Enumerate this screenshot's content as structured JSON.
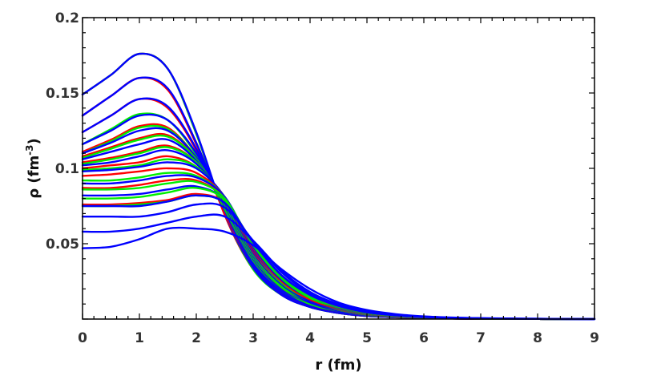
{
  "chart_data": {
    "type": "line",
    "title": "",
    "xlabel": "r (fm)",
    "ylabel": {
      "base": "ρ (fm",
      "sup": "-3",
      "tail": ")"
    },
    "xlim": [
      0,
      9
    ],
    "ylim": [
      0,
      0.2
    ],
    "x_ticks": [
      "0",
      "1",
      "2",
      "3",
      "4",
      "5",
      "6",
      "7",
      "8",
      "9"
    ],
    "y_ticks": [
      {
        "value": 0.05,
        "label": "0.05"
      },
      {
        "value": 0.1,
        "label": "0.1"
      },
      {
        "value": 0.15,
        "label": "0.15"
      },
      {
        "value": 0.2,
        "label": "0.2"
      }
    ],
    "grid": false,
    "legend": "none",
    "x": [
      0,
      0.5,
      1,
      1.5,
      2,
      2.5,
      3,
      3.5,
      4,
      4.5,
      5,
      5.5,
      6,
      6.5,
      7,
      8,
      9
    ],
    "series_colors": {
      "red": "#ff0000",
      "green": "#00ee00",
      "blue": "#0000ff"
    },
    "series": [
      {
        "color": "red",
        "values": [
          0.149,
          0.162,
          0.176,
          0.166,
          0.123,
          0.069,
          0.033,
          0.016,
          0.008,
          0.004,
          0.002,
          0.0012,
          0.0007,
          0.0004,
          0.0002,
          0.0001,
          0.0
        ]
      },
      {
        "color": "green",
        "values": [
          0.149,
          0.162,
          0.176,
          0.166,
          0.123,
          0.07,
          0.033,
          0.016,
          0.008,
          0.004,
          0.002,
          0.0012,
          0.0007,
          0.0004,
          0.0002,
          0.0001,
          0.0
        ]
      },
      {
        "color": "blue",
        "values": [
          0.149,
          0.162,
          0.176,
          0.166,
          0.124,
          0.07,
          0.034,
          0.016,
          0.008,
          0.004,
          0.002,
          0.0012,
          0.0007,
          0.0004,
          0.0002,
          0.0001,
          0.0
        ]
      },
      {
        "color": "red",
        "values": [
          0.135,
          0.148,
          0.16,
          0.152,
          0.116,
          0.07,
          0.035,
          0.017,
          0.009,
          0.0045,
          0.0023,
          0.0013,
          0.0008,
          0.0004,
          0.0002,
          0.0001,
          0.0
        ]
      },
      {
        "color": "blue",
        "values": [
          0.135,
          0.148,
          0.16,
          0.153,
          0.117,
          0.071,
          0.035,
          0.017,
          0.009,
          0.0045,
          0.0023,
          0.0013,
          0.0008,
          0.0004,
          0.0002,
          0.0001,
          0.0
        ]
      },
      {
        "color": "red",
        "values": [
          0.124,
          0.135,
          0.146,
          0.14,
          0.112,
          0.071,
          0.036,
          0.018,
          0.009,
          0.005,
          0.0025,
          0.0014,
          0.0008,
          0.0004,
          0.0002,
          0.0001,
          0.0
        ]
      },
      {
        "color": "blue",
        "values": [
          0.124,
          0.135,
          0.146,
          0.141,
          0.113,
          0.072,
          0.036,
          0.018,
          0.009,
          0.005,
          0.0025,
          0.0014,
          0.0008,
          0.0004,
          0.0002,
          0.0001,
          0.0
        ]
      },
      {
        "color": "green",
        "values": [
          0.116,
          0.126,
          0.136,
          0.132,
          0.109,
          0.073,
          0.038,
          0.019,
          0.01,
          0.005,
          0.0027,
          0.0015,
          0.0009,
          0.0005,
          0.0003,
          0.0001,
          0.0
        ]
      },
      {
        "color": "blue",
        "values": [
          0.116,
          0.125,
          0.135,
          0.132,
          0.11,
          0.074,
          0.038,
          0.019,
          0.01,
          0.005,
          0.0027,
          0.0015,
          0.0009,
          0.0005,
          0.0003,
          0.0001,
          0.0
        ]
      },
      {
        "color": "red",
        "values": [
          0.111,
          0.119,
          0.128,
          0.127,
          0.107,
          0.074,
          0.039,
          0.02,
          0.01,
          0.0055,
          0.0029,
          0.0016,
          0.0009,
          0.0005,
          0.0003,
          0.0001,
          0.0
        ]
      },
      {
        "color": "green",
        "values": [
          0.11,
          0.118,
          0.127,
          0.126,
          0.107,
          0.074,
          0.039,
          0.02,
          0.01,
          0.0055,
          0.0029,
          0.0016,
          0.0009,
          0.0005,
          0.0003,
          0.0001,
          0.0
        ]
      },
      {
        "color": "blue",
        "values": [
          0.11,
          0.117,
          0.125,
          0.125,
          0.107,
          0.075,
          0.04,
          0.02,
          0.011,
          0.0055,
          0.0029,
          0.0016,
          0.0009,
          0.0005,
          0.0003,
          0.0001,
          0.0
        ]
      },
      {
        "color": "red",
        "values": [
          0.108,
          0.114,
          0.12,
          0.122,
          0.106,
          0.076,
          0.041,
          0.021,
          0.011,
          0.006,
          0.003,
          0.0017,
          0.001,
          0.0005,
          0.0003,
          0.0001,
          0.0
        ]
      },
      {
        "color": "green",
        "values": [
          0.107,
          0.113,
          0.119,
          0.121,
          0.106,
          0.076,
          0.041,
          0.021,
          0.011,
          0.006,
          0.003,
          0.0017,
          0.001,
          0.0005,
          0.0003,
          0.0001,
          0.0
        ]
      },
      {
        "color": "blue",
        "values": [
          0.106,
          0.111,
          0.116,
          0.119,
          0.105,
          0.077,
          0.042,
          0.022,
          0.011,
          0.006,
          0.0031,
          0.0018,
          0.001,
          0.0006,
          0.0003,
          0.0001,
          0.0
        ]
      },
      {
        "color": "red",
        "values": [
          0.104,
          0.107,
          0.111,
          0.115,
          0.104,
          0.078,
          0.043,
          0.022,
          0.012,
          0.0062,
          0.0032,
          0.0018,
          0.001,
          0.0006,
          0.0003,
          0.0001,
          0.0
        ]
      },
      {
        "color": "green",
        "values": [
          0.103,
          0.106,
          0.11,
          0.114,
          0.104,
          0.078,
          0.043,
          0.022,
          0.012,
          0.0062,
          0.0032,
          0.0018,
          0.001,
          0.0006,
          0.0003,
          0.0001,
          0.0
        ]
      },
      {
        "color": "blue",
        "values": [
          0.102,
          0.104,
          0.108,
          0.112,
          0.103,
          0.079,
          0.044,
          0.023,
          0.012,
          0.0064,
          0.0033,
          0.0019,
          0.0011,
          0.0006,
          0.0003,
          0.0001,
          0.0
        ]
      },
      {
        "color": "red",
        "values": [
          0.1,
          0.102,
          0.104,
          0.108,
          0.101,
          0.08,
          0.045,
          0.024,
          0.013,
          0.0066,
          0.0034,
          0.0019,
          0.0011,
          0.0006,
          0.0003,
          0.0001,
          0.0
        ]
      },
      {
        "color": "green",
        "values": [
          0.099,
          0.1,
          0.102,
          0.106,
          0.101,
          0.08,
          0.046,
          0.024,
          0.013,
          0.0068,
          0.0035,
          0.002,
          0.0011,
          0.0006,
          0.0003,
          0.0001,
          0.0
        ]
      },
      {
        "color": "blue",
        "values": [
          0.098,
          0.099,
          0.101,
          0.104,
          0.1,
          0.081,
          0.046,
          0.025,
          0.013,
          0.007,
          0.0036,
          0.002,
          0.0011,
          0.0006,
          0.0003,
          0.0001,
          0.0
        ]
      },
      {
        "color": "red",
        "values": [
          0.095,
          0.096,
          0.098,
          0.1,
          0.097,
          0.081,
          0.047,
          0.025,
          0.013,
          0.0072,
          0.0037,
          0.0021,
          0.0012,
          0.0007,
          0.0004,
          0.0001,
          0.0
        ]
      },
      {
        "color": "green",
        "values": [
          0.092,
          0.092,
          0.094,
          0.097,
          0.095,
          0.081,
          0.048,
          0.026,
          0.014,
          0.0074,
          0.0038,
          0.0021,
          0.0012,
          0.0007,
          0.0004,
          0.0001,
          0.0
        ]
      },
      {
        "color": "blue",
        "values": [
          0.09,
          0.09,
          0.092,
          0.095,
          0.094,
          0.081,
          0.048,
          0.026,
          0.014,
          0.0075,
          0.0039,
          0.0022,
          0.0012,
          0.0007,
          0.0004,
          0.0001,
          0.0
        ]
      },
      {
        "color": "red",
        "values": [
          0.087,
          0.087,
          0.089,
          0.092,
          0.092,
          0.08,
          0.049,
          0.027,
          0.014,
          0.0077,
          0.004,
          0.0022,
          0.0013,
          0.0007,
          0.0004,
          0.0001,
          0.0
        ]
      },
      {
        "color": "green",
        "values": [
          0.086,
          0.086,
          0.087,
          0.09,
          0.091,
          0.08,
          0.049,
          0.027,
          0.014,
          0.0078,
          0.004,
          0.0023,
          0.0013,
          0.0007,
          0.0004,
          0.0001,
          0.0
        ]
      },
      {
        "color": "blue",
        "values": [
          0.082,
          0.082,
          0.083,
          0.086,
          0.088,
          0.079,
          0.05,
          0.028,
          0.015,
          0.008,
          0.0042,
          0.0023,
          0.0013,
          0.0008,
          0.0004,
          0.0001,
          0.0
        ]
      },
      {
        "color": "green",
        "values": [
          0.08,
          0.08,
          0.081,
          0.084,
          0.087,
          0.079,
          0.05,
          0.028,
          0.015,
          0.0082,
          0.0043,
          0.0024,
          0.0014,
          0.0008,
          0.0004,
          0.0001,
          0.0
        ]
      },
      {
        "color": "red",
        "values": [
          0.076,
          0.076,
          0.077,
          0.079,
          0.083,
          0.077,
          0.051,
          0.029,
          0.016,
          0.0085,
          0.0044,
          0.0025,
          0.0014,
          0.0008,
          0.0004,
          0.0001,
          0.0
        ]
      },
      {
        "color": "green",
        "values": [
          0.075,
          0.075,
          0.076,
          0.078,
          0.082,
          0.077,
          0.051,
          0.029,
          0.016,
          0.0086,
          0.0045,
          0.0025,
          0.0014,
          0.0008,
          0.0004,
          0.0001,
          0.0
        ]
      },
      {
        "color": "blue",
        "values": [
          0.075,
          0.075,
          0.075,
          0.078,
          0.082,
          0.077,
          0.051,
          0.029,
          0.016,
          0.0087,
          0.0045,
          0.0025,
          0.0014,
          0.0008,
          0.0004,
          0.0001,
          0.0
        ]
      },
      {
        "color": "blue",
        "values": [
          0.068,
          0.068,
          0.068,
          0.071,
          0.076,
          0.074,
          0.052,
          0.031,
          0.017,
          0.0092,
          0.0048,
          0.0027,
          0.0015,
          0.0009,
          0.0005,
          0.0001,
          0.0
        ]
      },
      {
        "color": "blue",
        "values": [
          0.058,
          0.058,
          0.06,
          0.064,
          0.068,
          0.068,
          0.052,
          0.032,
          0.018,
          0.0098,
          0.0052,
          0.0029,
          0.0016,
          0.0009,
          0.0005,
          0.0002,
          0.0
        ]
      },
      {
        "color": "blue",
        "values": [
          0.047,
          0.048,
          0.053,
          0.06,
          0.06,
          0.058,
          0.049,
          0.033,
          0.02,
          0.011,
          0.006,
          0.0033,
          0.0018,
          0.001,
          0.0006,
          0.0002,
          0.0
        ]
      }
    ]
  }
}
